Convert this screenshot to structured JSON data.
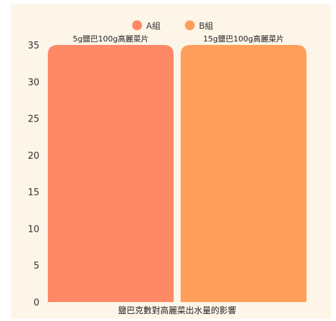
{
  "chart_data": {
    "type": "bar",
    "categories": [
      "鹽巴克數對高麗菜出水量的影響"
    ],
    "series": [
      {
        "name": "A組",
        "values": [
          35
        ],
        "data_label": "5g鹽巴100g高麗菜片",
        "color": "#ff8866"
      },
      {
        "name": "B組",
        "values": [
          35
        ],
        "data_label": "15g鹽巴100g高麗菜片",
        "color": "#ff9e5a"
      }
    ],
    "ylim": [
      0,
      35
    ],
    "yticks": [
      0,
      5,
      10,
      15,
      20,
      25,
      30,
      35
    ],
    "legend_position": "top-center",
    "grid": false
  }
}
